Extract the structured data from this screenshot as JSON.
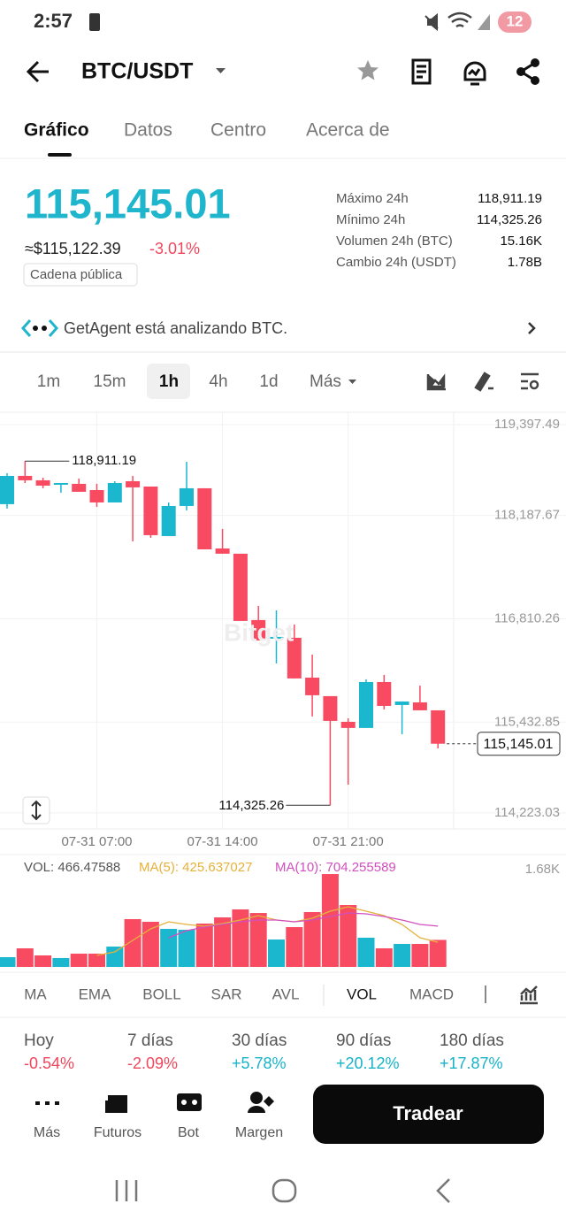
{
  "status_bar": {
    "time": "2:57",
    "battery": "12"
  },
  "header": {
    "pair": "BTC/USDT"
  },
  "tabs": [
    "Gráfico",
    "Datos",
    "Centro",
    "Acerca de"
  ],
  "price": {
    "last": "115,145.01",
    "usd": "≈$115,122.39",
    "change": "-3.01%",
    "chip": "Cadena pública"
  },
  "stats": [
    {
      "label": "Máximo 24h",
      "value": "118,911.19"
    },
    {
      "label": "Mínimo 24h",
      "value": "114,325.26"
    },
    {
      "label": "Volumen 24h (BTC)",
      "value": "15.16K"
    },
    {
      "label": "Cambio 24h (USDT)",
      "value": "1.78B"
    }
  ],
  "agent_banner": "GetAgent está analizando BTC.",
  "intervals": [
    "1m",
    "15m",
    "1h",
    "4h",
    "1d",
    "Más"
  ],
  "chart_data": {
    "type": "candlestick",
    "categories": [
      null,
      null,
      null,
      null,
      null,
      "07-31 07:00",
      null,
      null,
      null,
      null,
      null,
      null,
      "07-31 14:00",
      null,
      null,
      null,
      null,
      null,
      null,
      "07-31 21:00",
      null,
      null,
      null,
      null,
      null
    ],
    "open": [
      118337,
      118714,
      118655,
      118596,
      118608,
      118525,
      118360,
      118643,
      118572,
      117912,
      118313,
      118549,
      117747,
      117677,
      116793,
      116545,
      116557,
      116026,
      115779,
      115437,
      115355,
      115967,
      115661,
      115696,
      115590
    ],
    "high": [
      118749,
      118911.19,
      118690,
      118619,
      118678,
      118608,
      118643,
      118714,
      118572,
      118360,
      118902,
      118549,
      118007,
      117677,
      116981,
      116922,
      116734,
      116333,
      115779,
      115484,
      116003,
      116062,
      115708,
      115920,
      115590
    ],
    "low": [
      118278,
      118619,
      118549,
      118490,
      118502,
      118301,
      118360,
      117842,
      117889,
      117912,
      118254,
      117735,
      117677,
      116781,
      116521,
      116215,
      116015,
      115508,
      114325.26,
      114600,
      115355,
      115602,
      115272,
      115590,
      115083
    ],
    "close": [
      118714,
      118655,
      118584,
      118619,
      118502,
      118360,
      118619,
      118561,
      117924,
      118313,
      118549,
      117735,
      117677,
      116781,
      116521,
      116569,
      116015,
      115791,
      115449,
      115355,
      115967,
      115649,
      115708,
      115590,
      115145.01
    ],
    "up_color": "#1ab7cf",
    "down_color": "#f84b62",
    "ylim": [
      114010,
      119562
    ],
    "yticks": [
      {
        "value": 119397.49,
        "label": "119,397.49"
      },
      {
        "value": 118187.67,
        "label": "118,187.67"
      },
      {
        "value": 116810.26,
        "label": "116,810.26"
      },
      {
        "value": 115432.85,
        "label": "115,432.85"
      },
      {
        "value": 114223.03,
        "label": "114,223.03"
      }
    ],
    "grid": true,
    "high_label": {
      "value": 118911.19,
      "label": "118,911.19"
    },
    "low_label": {
      "value": 114325.26,
      "label": "114,325.26"
    },
    "last_label": {
      "value": 115145.01,
      "label": "115,145.01"
    },
    "volume": {
      "legend": [
        "VOL: 466.47588",
        "MA(5): 425.637027",
        "MA(10): 704.255589"
      ],
      "legend_colors": [
        "#555555",
        "#e6b13a",
        "#d24fbf"
      ],
      "values": [
        168,
        321,
        199,
        153,
        229,
        229,
        351,
        825,
        779,
        657,
        641,
        748,
        855,
        993,
        931,
        473,
        687,
        947,
        1603,
        1069,
        504,
        321,
        397,
        397,
        466.47588
      ],
      "ma5": [
        null,
        null,
        null,
        null,
        null,
        199,
        260,
        458,
        657,
        779,
        733,
        703,
        748,
        809,
        886,
        809,
        779,
        840,
        962,
        1038,
        962,
        886,
        733,
        504,
        425.637027
      ],
      "ma10": [
        null,
        null,
        null,
        null,
        null,
        null,
        null,
        null,
        null,
        504,
        626,
        687,
        733,
        779,
        809,
        809,
        779,
        809,
        870,
        931,
        916,
        870,
        809,
        733,
        704.255589
      ],
      "ylim": [
        0,
        1680
      ],
      "yticks": [
        {
          "value": 1680,
          "label": "1.68K"
        }
      ]
    }
  },
  "indicator_tabs": [
    "MA",
    "EMA",
    "BOLL",
    "SAR",
    "AVL",
    "VOL",
    "MACD"
  ],
  "performance": [
    {
      "label": "Hoy",
      "value": "-0.54%",
      "color": "#f0465c"
    },
    {
      "label": "7 días",
      "value": "-2.09%",
      "color": "#f0465c"
    },
    {
      "label": "30 días",
      "value": "+5.78%",
      "color": "#16b3c9"
    },
    {
      "label": "90 días",
      "value": "+20.12%",
      "color": "#16b3c9"
    },
    {
      "label": "180 días",
      "value": "+17.87%",
      "color": "#16b3c9"
    }
  ],
  "bottom_nav": [
    "Más",
    "Futuros",
    "Bot",
    "Margen"
  ],
  "trade_button": "Tradear"
}
